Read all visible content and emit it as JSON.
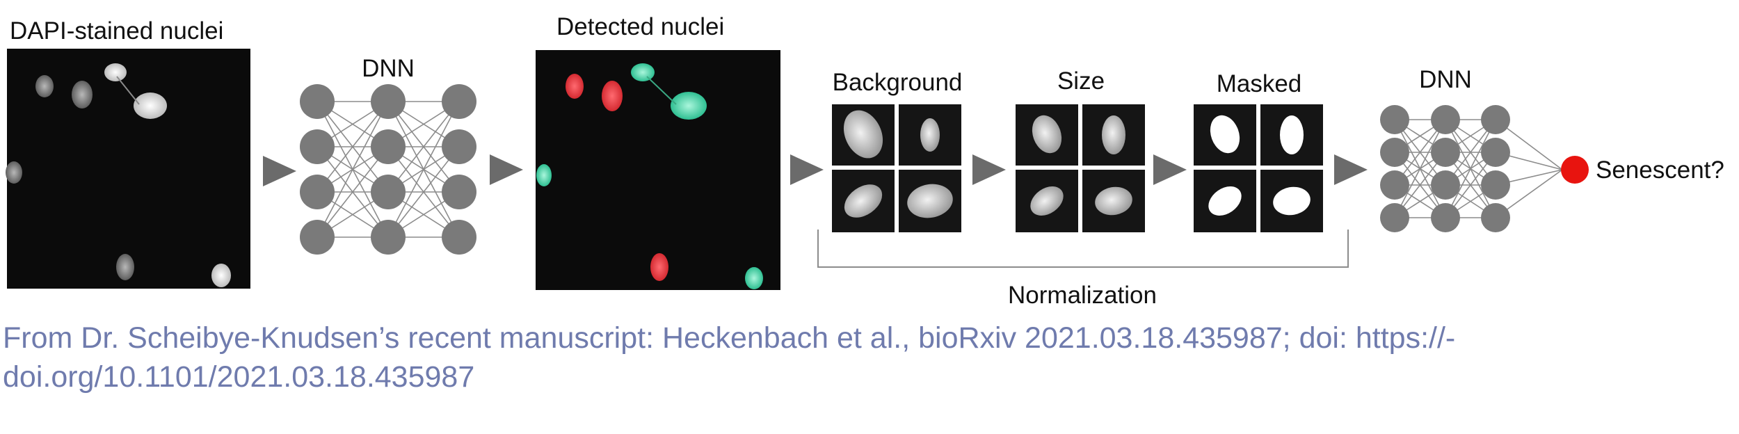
{
  "labels": {
    "dapi": "DAPI-stained nuclei",
    "dnn_left": "DNN",
    "detected": "Detected nuclei",
    "background": "Background",
    "size": "Size",
    "masked": "Masked",
    "dnn_right": "DNN",
    "senescent": "Senescent?",
    "normalization": "Normalization"
  },
  "caption": {
    "line1": "From Dr. Scheibye-Knudsen’s recent manuscript: Heckenbach et al., bioRxiv 2021.03.18.435987; doi: https://-",
    "line2": "doi.org/10.1101/2021.03.18.435987"
  },
  "colors": {
    "node": "#7a7a7a",
    "edge": "#8c8c8c",
    "arrow": "#6b6b6b",
    "senescent_node": "#e8140f",
    "nucleus_red": "#e8383f",
    "nucleus_cyan": "#55d9b4",
    "caption": "#6f7bad"
  }
}
